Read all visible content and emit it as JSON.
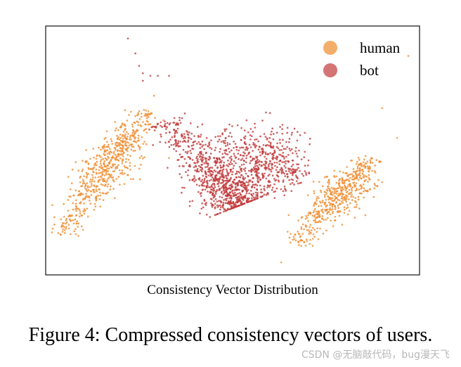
{
  "chart_data": {
    "type": "scatter",
    "title": "Consistency Vector Distribution",
    "xlabel": "",
    "ylabel": "",
    "xlim": [
      0,
      100
    ],
    "ylim": [
      0,
      100
    ],
    "grid": false,
    "axis_ticks": false,
    "legend_position": "top-right",
    "series": [
      {
        "name": "human",
        "color": "#F08C2E",
        "clusters": [
          {
            "from": [
              4,
              16
            ],
            "to": [
              27,
              66
            ],
            "n": 620,
            "spread": 2.2,
            "dense_center": [
              22,
              42
            ]
          },
          {
            "from": [
              67,
              12
            ],
            "to": [
              87,
              47
            ],
            "n": 520,
            "spread": 2.0,
            "dense_center": [
              80,
              34
            ]
          }
        ],
        "outliers": [
          [
            97,
            88
          ],
          [
            90,
            67
          ],
          [
            63,
            5
          ],
          [
            58,
            44
          ],
          [
            29,
            72
          ],
          [
            94,
            55
          ],
          [
            33,
            47
          ],
          [
            65,
            24
          ]
        ]
      },
      {
        "name": "bot",
        "color": "#C0393A",
        "clusters": [
          {
            "from": [
              32,
              62
            ],
            "to": [
              52,
              28
            ],
            "n": 820,
            "spread": 3.0,
            "dense_center": [
              47,
              33
            ]
          },
          {
            "from": [
              45,
              55
            ],
            "to": [
              69,
              38
            ],
            "n": 520,
            "spread": 4.5,
            "dense_center": [
              58,
              45
            ]
          }
        ],
        "outliers": [
          [
            22,
            95
          ],
          [
            24,
            89
          ],
          [
            25,
            84
          ],
          [
            26,
            81
          ],
          [
            28,
            80
          ],
          [
            30,
            80
          ],
          [
            33,
            80
          ],
          [
            26,
            78
          ],
          [
            60,
            65
          ],
          [
            58,
            62
          ]
        ]
      }
    ]
  },
  "figure_caption": "Figure 4: Compressed consistency vectors of users.",
  "watermark": "CSDN @无脑敲代码，bug漫天飞"
}
